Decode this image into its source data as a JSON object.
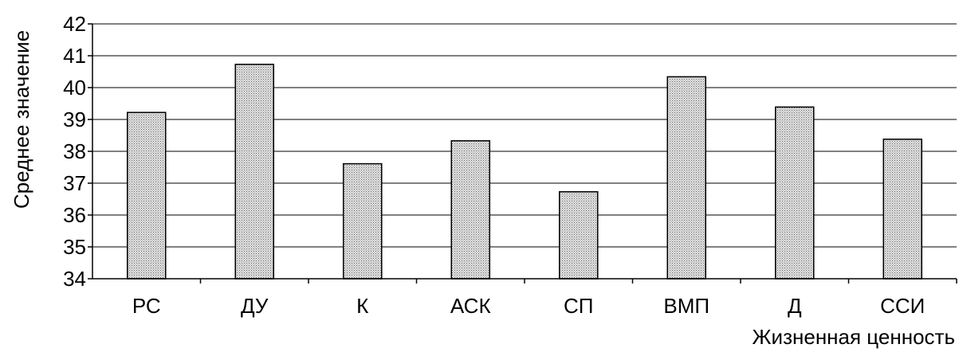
{
  "chart_data": {
    "type": "bar",
    "title": "",
    "xlabel": "Жизненная ценность",
    "ylabel": "Среднее значение",
    "categories": [
      "РС",
      "ДУ",
      "К",
      "АСК",
      "СП",
      "ВМП",
      "Д",
      "ССИ"
    ],
    "values": [
      39.22,
      40.73,
      37.61,
      38.33,
      36.73,
      40.34,
      39.39,
      38.38
    ],
    "ylim": [
      34,
      42
    ],
    "yticks": [
      "34",
      "35",
      "36",
      "37",
      "38",
      "39",
      "40",
      "41",
      "42"
    ],
    "grid": true,
    "legend": "none",
    "bar_fill": "#cfcfcf",
    "bar_stroke": "#000000"
  }
}
